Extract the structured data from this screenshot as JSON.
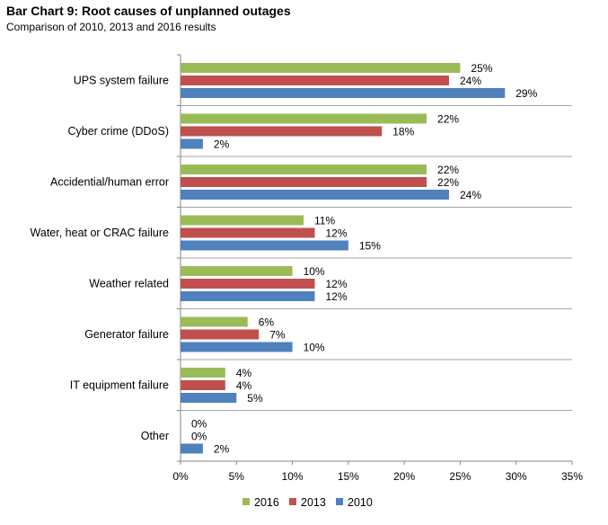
{
  "chart_data": {
    "type": "bar",
    "orientation": "horizontal",
    "title": "Bar Chart 9: Root causes of unplanned outages",
    "subtitle": "Comparison of 2010, 2013 and 2016 results",
    "categories": [
      "UPS system failure",
      "Cyber crime (DDoS)",
      "Accidential/human error",
      "Water, heat or CRAC failure",
      "Weather related",
      "Generator failure",
      "IT equipment failure",
      "Other"
    ],
    "series": [
      {
        "name": "2016",
        "color": "#9BBB59",
        "values": [
          25,
          22,
          22,
          11,
          10,
          6,
          4,
          0
        ]
      },
      {
        "name": "2013",
        "color": "#C0504D",
        "values": [
          24,
          18,
          22,
          12,
          12,
          7,
          4,
          0
        ]
      },
      {
        "name": "2010",
        "color": "#4F81BD",
        "values": [
          29,
          2,
          24,
          15,
          12,
          10,
          5,
          2
        ]
      }
    ],
    "value_suffix": "%",
    "xlim": [
      0,
      35
    ],
    "xticks": [
      "0%",
      "5%",
      "10%",
      "15%",
      "20%",
      "25%",
      "30%",
      "35%"
    ],
    "grid": "horizontal separators between categories",
    "legend": "bottom-center"
  }
}
